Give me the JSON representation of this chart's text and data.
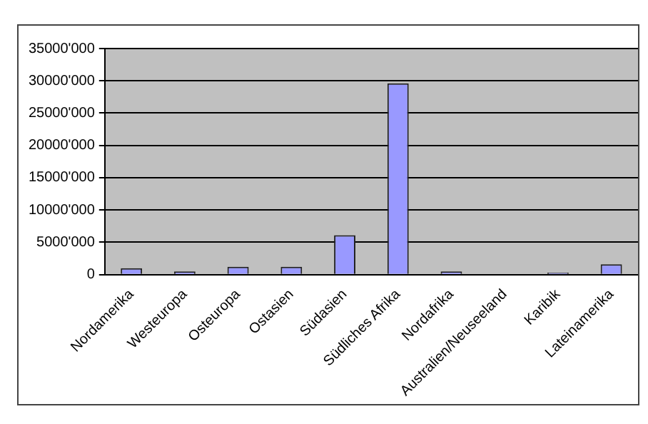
{
  "chart_data": {
    "type": "bar",
    "categories": [
      "Nordamerika",
      "Westeuropa",
      "Osteuropa",
      "Ostasien",
      "Südasien",
      "Südliches Afrika",
      "Nordafrika",
      "Australien/Neuseeland",
      "Karibik",
      "Lateinamerika"
    ],
    "values": [
      1000000,
      500000,
      1200000,
      1200000,
      6100000,
      29600000,
      500000,
      0,
      300000,
      1600000
    ],
    "color": "#9999ff",
    "ylim": [
      0,
      35000000
    ],
    "yticks": [
      {
        "value": 0,
        "label": "0"
      },
      {
        "value": 5000000,
        "label": "5000'000"
      },
      {
        "value": 10000000,
        "label": "10000'000"
      },
      {
        "value": 15000000,
        "label": "15000'000"
      },
      {
        "value": 20000000,
        "label": "20000'000"
      },
      {
        "value": 25000000,
        "label": "25000'000"
      },
      {
        "value": 30000000,
        "label": "30000'000"
      },
      {
        "value": 35000000,
        "label": "35000'000"
      }
    ],
    "grid": "y",
    "legend": false
  }
}
